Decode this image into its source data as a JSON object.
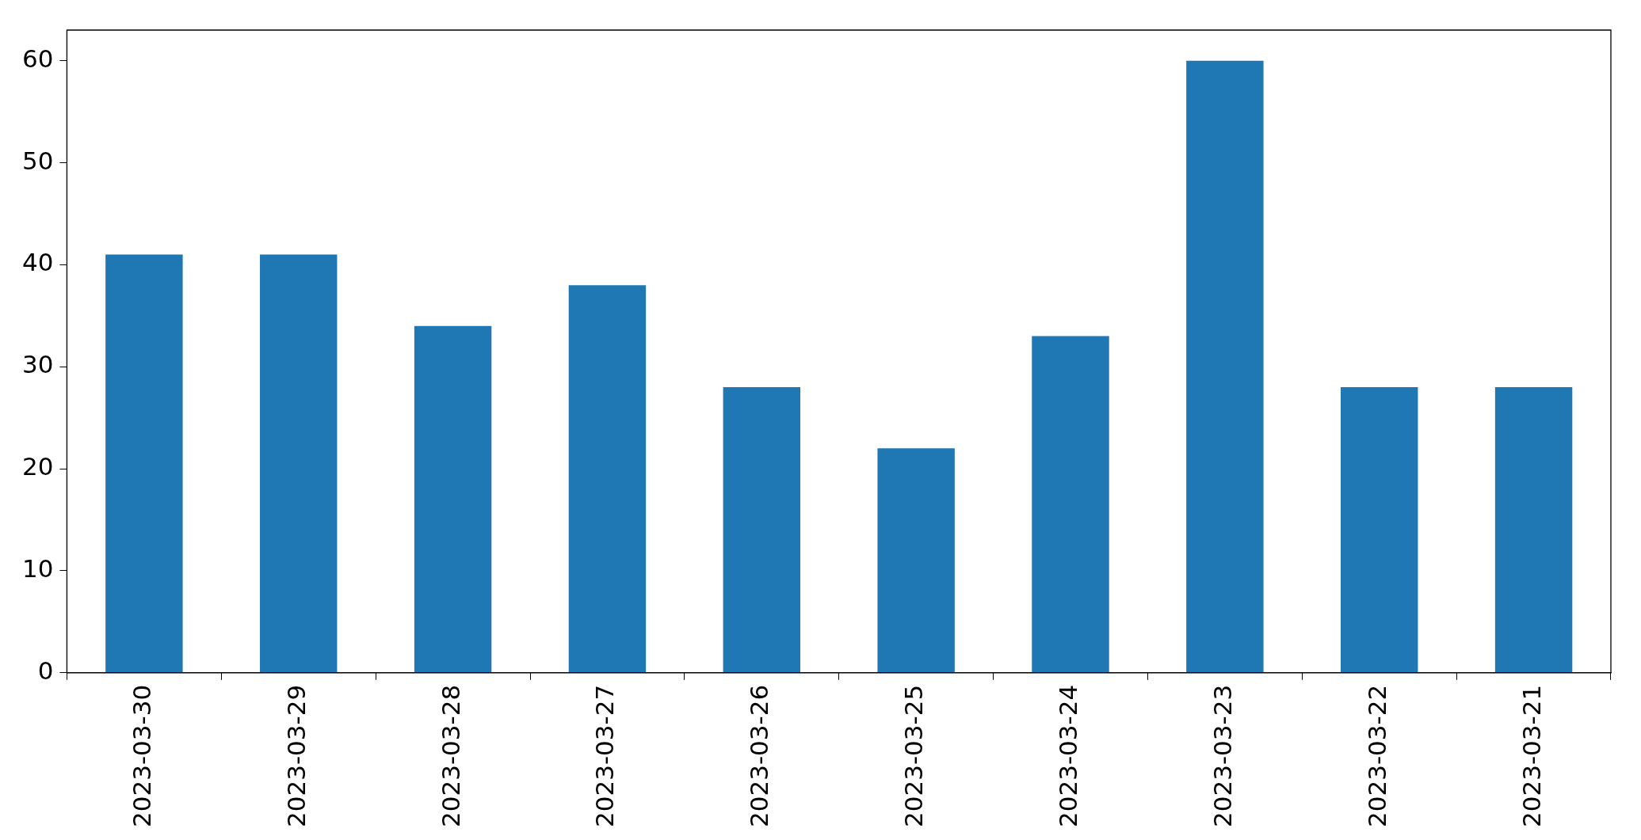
{
  "chart_data": {
    "type": "bar",
    "categories": [
      "2023-03-30",
      "2023-03-29",
      "2023-03-28",
      "2023-03-27",
      "2023-03-26",
      "2023-03-25",
      "2023-03-24",
      "2023-03-23",
      "2023-03-22",
      "2023-03-21"
    ],
    "values": [
      41,
      41,
      34,
      38,
      28,
      22,
      33,
      60,
      28,
      28
    ],
    "color": "#1f77b4",
    "ylim": [
      0,
      63
    ],
    "yticks": [
      0,
      10,
      20,
      30,
      40,
      50,
      60
    ],
    "grid": false,
    "legend": false
  }
}
